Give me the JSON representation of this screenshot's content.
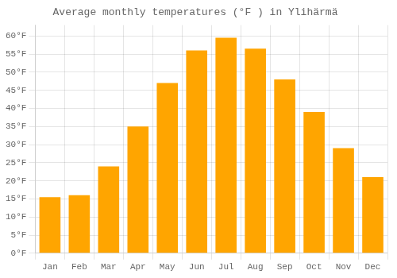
{
  "chart_data": {
    "type": "bar",
    "title": "Average monthly temperatures (°F ) in Ylihärmä",
    "categories": [
      "Jan",
      "Feb",
      "Mar",
      "Apr",
      "May",
      "Jun",
      "Jul",
      "Aug",
      "Sep",
      "Oct",
      "Nov",
      "Dec"
    ],
    "values": [
      15.5,
      16,
      24,
      35,
      47,
      56,
      59.5,
      56.5,
      48,
      39,
      29,
      21
    ],
    "color": "#FFA500",
    "ylim": [
      0,
      63
    ],
    "yticks": [
      {
        "value": 0,
        "label": "0°F"
      },
      {
        "value": 5,
        "label": "5°F"
      },
      {
        "value": 10,
        "label": "10°F"
      },
      {
        "value": 15,
        "label": "15°F"
      },
      {
        "value": 20,
        "label": "20°F"
      },
      {
        "value": 25,
        "label": "25°F"
      },
      {
        "value": 30,
        "label": "30°F"
      },
      {
        "value": 35,
        "label": "35°F"
      },
      {
        "value": 40,
        "label": "40°F"
      },
      {
        "value": 45,
        "label": "45°F"
      },
      {
        "value": 50,
        "label": "50°F"
      },
      {
        "value": 55,
        "label": "55°F"
      },
      {
        "value": 60,
        "label": "60°F"
      }
    ],
    "grid": true
  }
}
